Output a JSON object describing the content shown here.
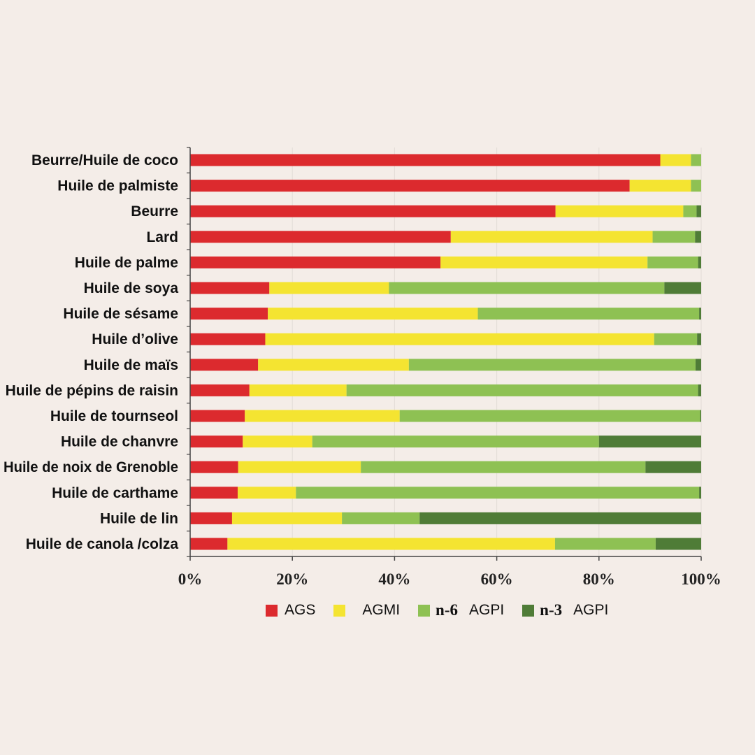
{
  "chart_data": {
    "type": "bar",
    "orientation": "horizontal",
    "stacked": true,
    "title": "",
    "xlabel": "",
    "ylabel": "",
    "xlim": [
      0,
      100
    ],
    "x_ticks": [
      "0%",
      "20%",
      "40%",
      "60%",
      "80%",
      "100%"
    ],
    "grid": true,
    "legend_position": "bottom",
    "categories": [
      "Beurre/Huile de coco",
      "Huile de palmiste",
      "Beurre",
      "Lard",
      "Huile de palme",
      "Huile de soya",
      "Huile de sésame",
      "Huile d’olive",
      "Huile de maïs",
      "Huile de pépins de raisin",
      "Huile de tournseol",
      "Huile de chanvre",
      "Huile de noix de Grenoble",
      "Huile de carthame",
      "Huile de lin",
      "Huile de canola /colza"
    ],
    "series": [
      {
        "name": "AGS",
        "color": "#dc2a2e",
        "values": [
          92,
          86,
          71.5,
          51,
          49,
          15.5,
          15.2,
          14.7,
          13.3,
          11.6,
          10.7,
          10.3,
          9.4,
          9.3,
          8.2,
          7.3
        ]
      },
      {
        "name": "AGMI",
        "color": "#f4e431",
        "values": [
          6,
          12,
          25,
          39.5,
          40.5,
          23.4,
          41.1,
          76.1,
          29.5,
          19,
          30.3,
          13.6,
          24,
          11.4,
          21.5,
          64.1
        ]
      },
      {
        "name": "AGPI",
        "prefix": "n-6",
        "color": "#8ec153",
        "values": [
          2,
          2,
          2.6,
          8.3,
          9.9,
          53.9,
          43.3,
          8.4,
          56.1,
          68.8,
          58.8,
          56.1,
          55.7,
          78.9,
          15.2,
          19.7
        ]
      },
      {
        "name": "AGPI",
        "prefix": "n-3",
        "color": "#4f7c37",
        "values": [
          0,
          0,
          0.9,
          1.2,
          0.6,
          7.2,
          0.4,
          0.8,
          1.1,
          0.6,
          0.2,
          20,
          10.9,
          0.4,
          55.1,
          8.9
        ]
      }
    ]
  }
}
